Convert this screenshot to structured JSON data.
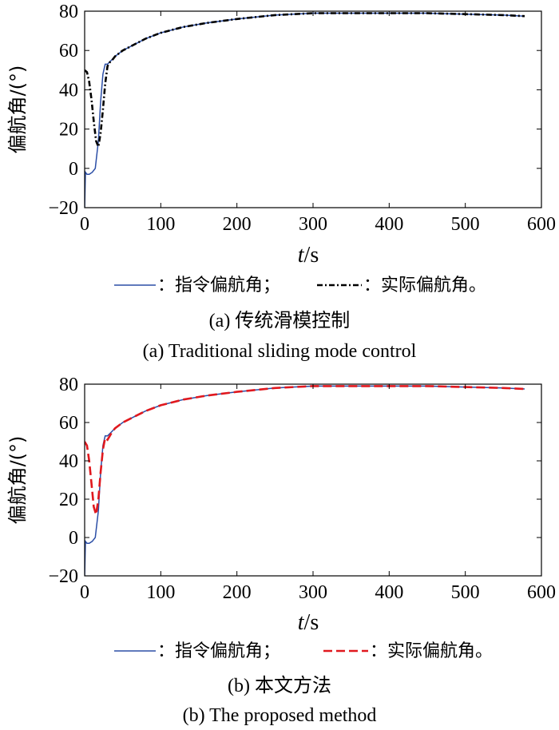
{
  "chart_data": [
    {
      "type": "line",
      "panel": "a",
      "ylabel": "偏航角/(°)",
      "xlabel_var": "t",
      "xlabel_unit": "/s",
      "xlim": [
        0,
        600
      ],
      "ylim": [
        -20,
        80
      ],
      "xticks": [
        "0",
        "100",
        "200",
        "300",
        "400",
        "500",
        "600"
      ],
      "yticks": [
        "−20",
        "0",
        "20",
        "40",
        "60",
        "80"
      ],
      "grid": false,
      "legend": [
        "：指令偏航角；",
        "：实际偏航角。"
      ],
      "caption_cn": "(a) 传统滑模控制",
      "caption_en": "(a) Traditional sliding mode control",
      "series": [
        {
          "name": "指令偏航角",
          "color": "#2b4ea6",
          "style": "solid",
          "x": [
            0,
            1,
            3,
            6,
            10,
            14,
            18,
            21,
            24,
            27,
            30,
            35,
            40,
            50,
            60,
            80,
            100,
            130,
            160,
            200,
            250,
            300,
            350,
            400,
            450,
            500,
            550,
            578
          ],
          "y": [
            -20,
            -2,
            -3,
            -3,
            -2,
            0,
            14,
            34,
            48,
            53,
            53,
            55,
            57,
            60,
            62,
            66,
            69,
            72,
            74,
            76,
            78,
            79,
            79,
            79,
            79,
            78.5,
            78,
            77.5
          ]
        },
        {
          "name": "实际偏航角",
          "color": "#000000",
          "style": "dashdot",
          "x": [
            0,
            3,
            6,
            9,
            12,
            15,
            18,
            21,
            24,
            27,
            30,
            33,
            36,
            40,
            50,
            60,
            80,
            100,
            130,
            160,
            200,
            250,
            300,
            350,
            400,
            450,
            500,
            550,
            578
          ],
          "y": [
            50,
            49,
            44,
            35,
            24,
            14,
            11,
            18,
            30,
            43,
            52,
            54,
            55,
            57,
            60,
            62,
            66,
            69,
            72,
            74,
            76,
            78,
            79,
            79,
            79,
            79,
            78.5,
            78,
            77.5
          ]
        }
      ]
    },
    {
      "type": "line",
      "panel": "b",
      "ylabel": "偏航角/(°)",
      "xlabel_var": "t",
      "xlabel_unit": "/s",
      "xlim": [
        0,
        600
      ],
      "ylim": [
        -20,
        80
      ],
      "xticks": [
        "0",
        "100",
        "200",
        "300",
        "400",
        "500",
        "600"
      ],
      "yticks": [
        "−20",
        "0",
        "20",
        "40",
        "60",
        "80"
      ],
      "grid": false,
      "legend": [
        "：指令偏航角；",
        "：实际偏航角。"
      ],
      "caption_cn": "(b) 本文方法",
      "caption_en": "(b) The proposed method",
      "series": [
        {
          "name": "指令偏航角",
          "color": "#2b4ea6",
          "style": "solid",
          "x": [
            0,
            1,
            3,
            6,
            10,
            14,
            18,
            21,
            24,
            27,
            30,
            35,
            40,
            50,
            60,
            80,
            100,
            130,
            160,
            200,
            250,
            300,
            350,
            400,
            450,
            500,
            550,
            578
          ],
          "y": [
            -20,
            -2,
            -3,
            -3,
            -2,
            0,
            14,
            34,
            48,
            53,
            53,
            55,
            57,
            60,
            62,
            66,
            69,
            72,
            74,
            76,
            78,
            79,
            79,
            79,
            79,
            78.5,
            78,
            77.5
          ]
        },
        {
          "name": "实际偏航角",
          "color": "#e0181e",
          "style": "dashed",
          "x": [
            0,
            3,
            6,
            9,
            12,
            15,
            18,
            21,
            24,
            27,
            30,
            33,
            36,
            40,
            50,
            60,
            80,
            100,
            130,
            160,
            200,
            250,
            300,
            350,
            400,
            450,
            500,
            550,
            578
          ],
          "y": [
            50,
            48,
            40,
            28,
            16,
            12,
            20,
            34,
            46,
            52,
            51,
            53,
            55,
            57,
            60,
            62,
            66,
            69,
            72,
            74,
            76,
            78,
            79,
            79,
            79,
            79,
            78.5,
            78,
            77.5
          ]
        }
      ]
    }
  ]
}
